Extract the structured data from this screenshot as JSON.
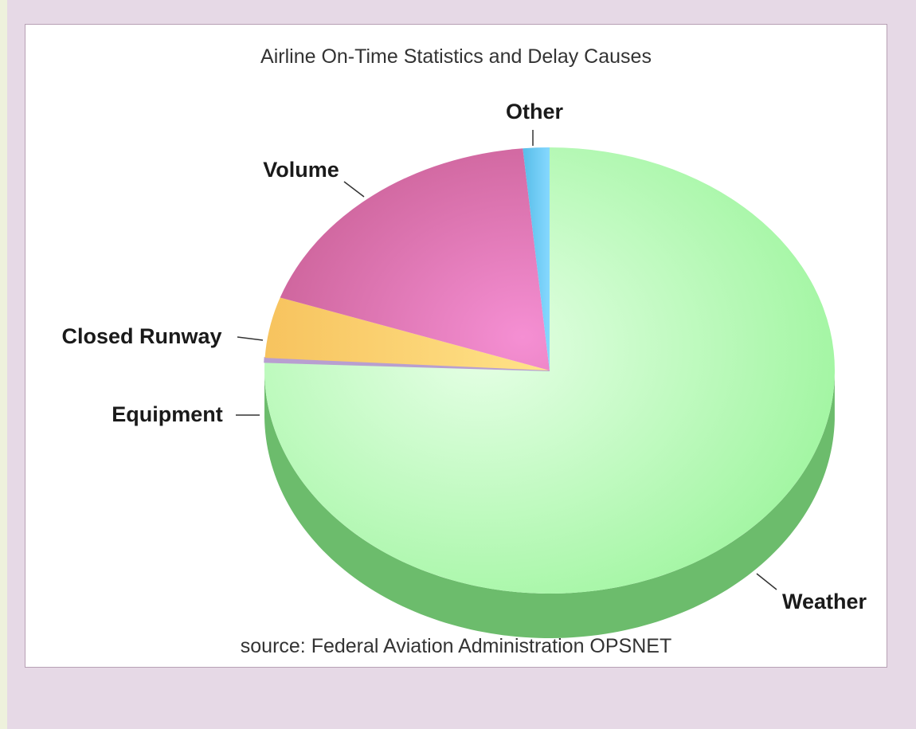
{
  "chart_data": {
    "type": "pie",
    "title": "Airline On-Time Statistics and Delay Causes",
    "source": "source: Federal Aviation Administration OPSNET",
    "slices": [
      {
        "label": "Weather",
        "value": 75.6,
        "color": "#9cf59c"
      },
      {
        "label": "Equipment",
        "value": 0.3,
        "color": "#b89fd0"
      },
      {
        "label": "Closed Runway",
        "value": 4.4,
        "color": "#ffd17a"
      },
      {
        "label": "Volume",
        "value": 18.2,
        "color": "#e27cbb"
      },
      {
        "label": "Other",
        "value": 1.5,
        "color": "#6cc8f2"
      }
    ]
  }
}
